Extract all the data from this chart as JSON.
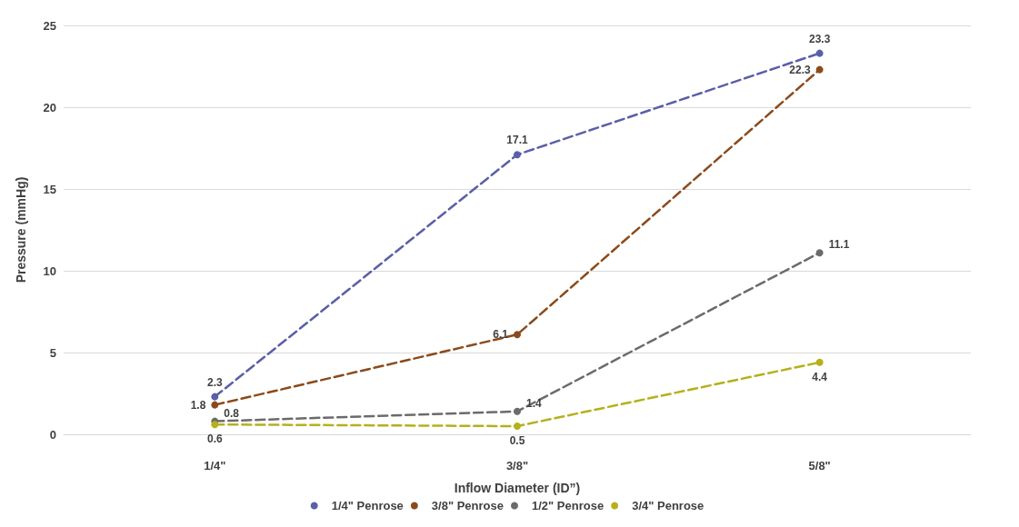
{
  "chart_data": {
    "type": "line",
    "xlabel": "Inflow Diameter (ID”)",
    "ylabel": "Pressure (mmHg)",
    "categories": [
      "1/4\"",
      "3/8\"",
      "5/8\""
    ],
    "series": [
      {
        "name": "1/4\" Penrose",
        "color": "#5a5fa8",
        "values": [
          2.3,
          17.1,
          23.3
        ]
      },
      {
        "name": "3/8\" Penrose",
        "color": "#8b4a1c",
        "values": [
          1.8,
          6.1,
          22.3
        ]
      },
      {
        "name": "1/2\" Penrose",
        "color": "#6b6b6b",
        "values": [
          0.8,
          1.4,
          11.1
        ]
      },
      {
        "name": "3/4\" Penrose",
        "color": "#b5b01c",
        "values": [
          0.6,
          0.5,
          4.4
        ]
      }
    ],
    "ylim": [
      0,
      25
    ],
    "yticks": [
      0,
      5,
      10,
      15,
      20,
      25
    ],
    "grid": "y",
    "legend": "bottom",
    "marker": "circle",
    "line_style": "dashed",
    "data_labels": true
  }
}
